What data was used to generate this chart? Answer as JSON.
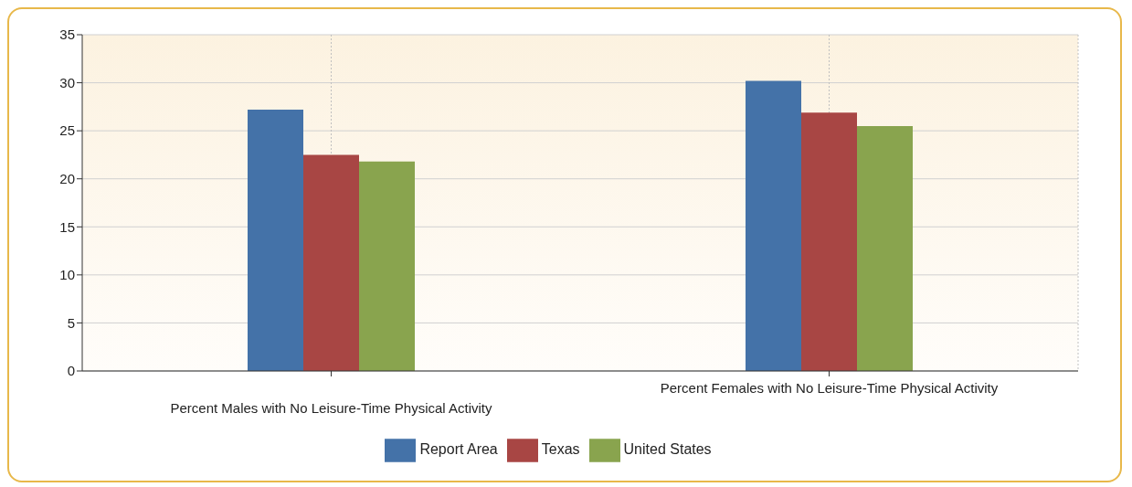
{
  "chart_data": {
    "type": "bar",
    "categories": [
      "Percent Males with No Leisure-Time Physical Activity",
      "Percent Females with No Leisure-Time Physical Activity"
    ],
    "series": [
      {
        "name": "Report Area",
        "color": "#4472a8",
        "values": [
          27.2,
          30.2
        ]
      },
      {
        "name": "Texas",
        "color": "#a84644",
        "values": [
          22.5,
          26.9
        ]
      },
      {
        "name": "United States",
        "color": "#89a44e",
        "values": [
          21.8,
          25.5
        ]
      }
    ],
    "ylim": [
      0,
      35
    ],
    "yticks": [
      0,
      5,
      10,
      15,
      20,
      25,
      30,
      35
    ],
    "grid": true,
    "legend": "bottom"
  }
}
